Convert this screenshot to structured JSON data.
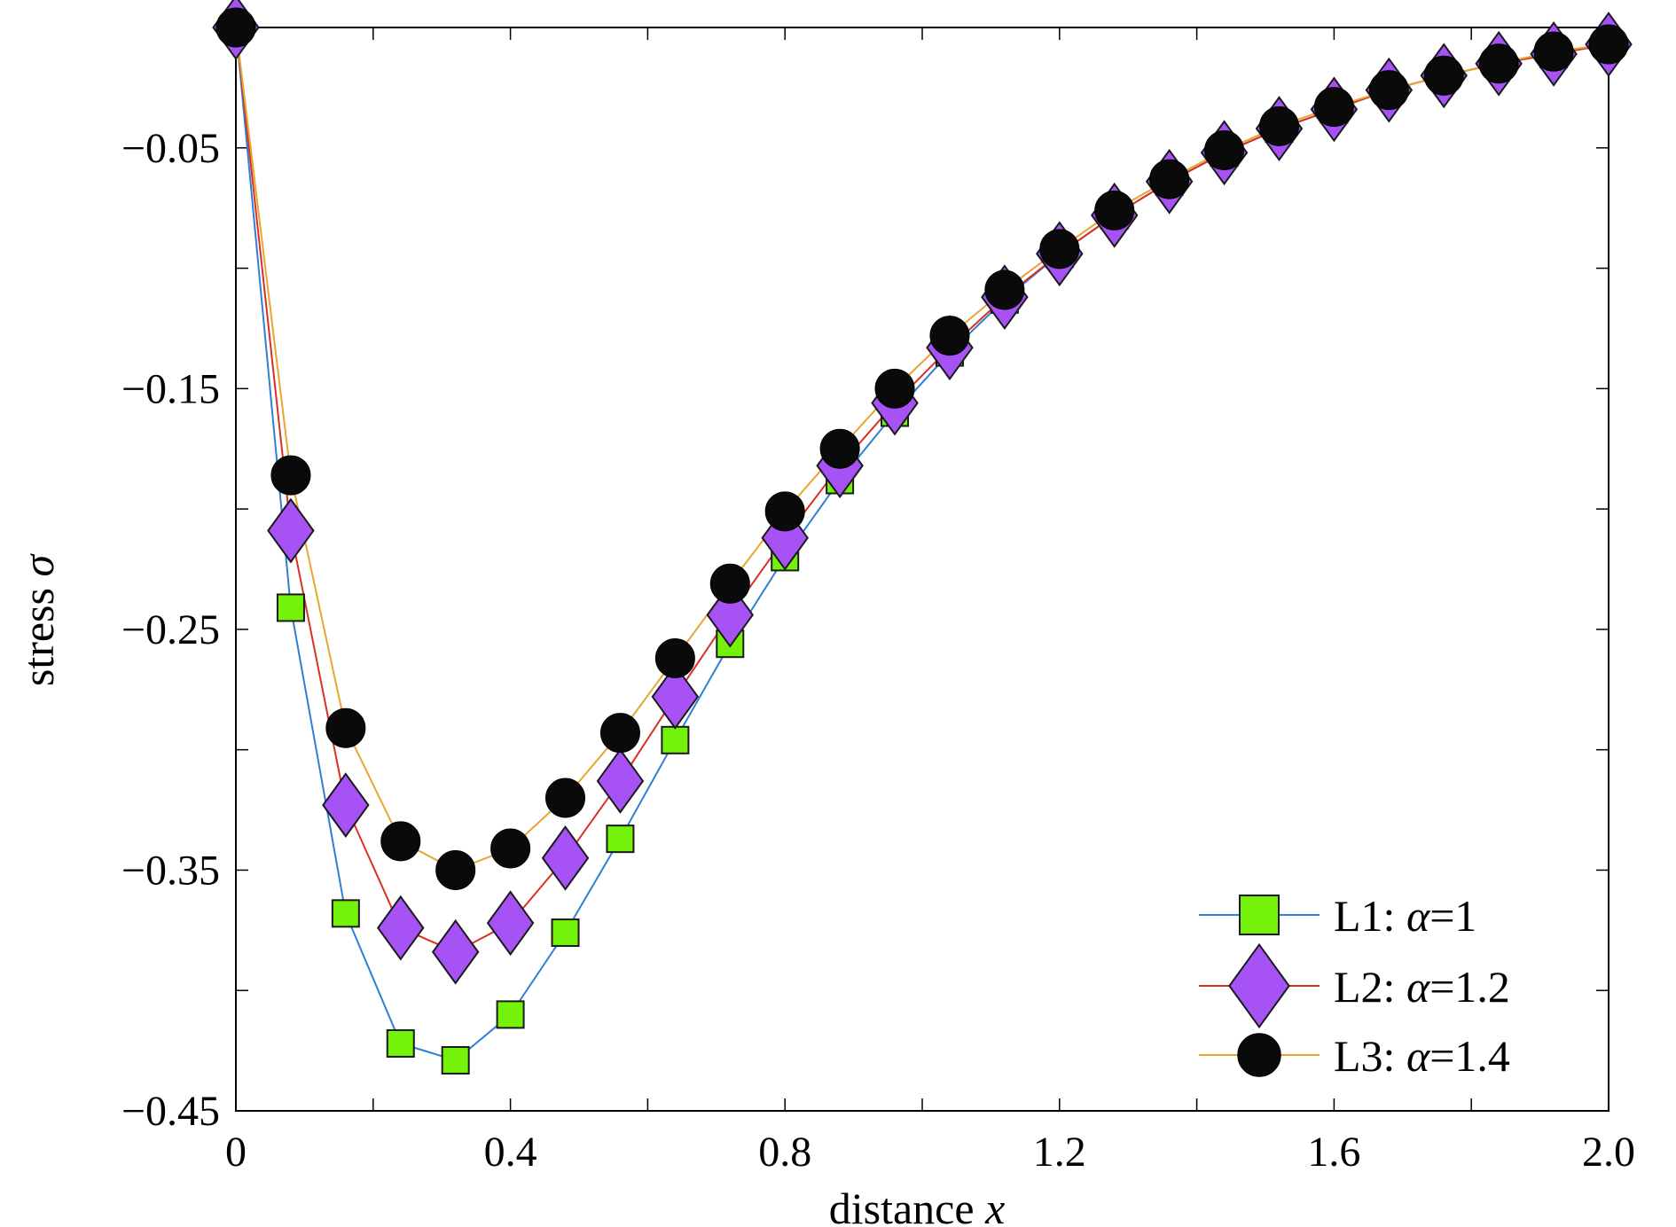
{
  "chart_data": {
    "type": "line",
    "xlabel": "distance",
    "xlabel_var": "x",
    "ylabel": "stress",
    "ylabel_var": "σ",
    "xlim": [
      0,
      2.0
    ],
    "ylim": [
      -0.45,
      0
    ],
    "x_ticks": [
      0,
      0.4,
      0.8,
      1.2,
      1.6,
      2.0
    ],
    "x_tick_labels": [
      "0",
      "0.4",
      "0.8",
      "1.2",
      "1.6",
      "2.0"
    ],
    "y_ticks": [
      -0.05,
      -0.15,
      -0.25,
      -0.35,
      -0.45
    ],
    "y_tick_labels": [
      "−0.05",
      "−0.15",
      "−0.25",
      "−0.35",
      "−0.45"
    ],
    "grid": false,
    "legend_position": "bottom-right",
    "x": [
      0,
      0.08,
      0.16,
      0.24,
      0.32,
      0.4,
      0.48,
      0.56,
      0.64,
      0.72,
      0.8,
      0.88,
      0.96,
      1.04,
      1.12,
      1.2,
      1.28,
      1.36,
      1.44,
      1.52,
      1.6,
      1.68,
      1.76,
      1.84,
      1.92,
      2.0
    ],
    "series": [
      {
        "name": "L1",
        "param": "α=1",
        "marker": "square",
        "line_color": "#2f7fd4",
        "marker_color": "#74f20a",
        "values": [
          0,
          -0.241,
          -0.368,
          -0.422,
          -0.429,
          -0.41,
          -0.376,
          -0.337,
          -0.296,
          -0.256,
          -0.22,
          -0.188,
          -0.16,
          -0.135,
          -0.113,
          -0.094,
          -0.078,
          -0.064,
          -0.052,
          -0.042,
          -0.034,
          -0.026,
          -0.02,
          -0.015,
          -0.011,
          -0.007
        ]
      },
      {
        "name": "L2",
        "param": "α=1.2",
        "marker": "diamond",
        "line_color": "#d93025",
        "marker_color": "#a652f5",
        "values": [
          0,
          -0.209,
          -0.323,
          -0.374,
          -0.384,
          -0.372,
          -0.345,
          -0.313,
          -0.278,
          -0.244,
          -0.212,
          -0.182,
          -0.156,
          -0.133,
          -0.112,
          -0.094,
          -0.078,
          -0.064,
          -0.052,
          -0.042,
          -0.034,
          -0.026,
          -0.02,
          -0.015,
          -0.011,
          -0.007
        ]
      },
      {
        "name": "L3",
        "param": "α=1.4",
        "marker": "circle",
        "line_color": "#e8a530",
        "marker_color": "#0a0a0a",
        "values": [
          0,
          -0.186,
          -0.291,
          -0.338,
          -0.35,
          -0.341,
          -0.32,
          -0.293,
          -0.262,
          -0.231,
          -0.201,
          -0.175,
          -0.15,
          -0.128,
          -0.109,
          -0.092,
          -0.076,
          -0.063,
          -0.051,
          -0.041,
          -0.033,
          -0.026,
          -0.02,
          -0.015,
          -0.01,
          -0.007
        ]
      }
    ]
  }
}
